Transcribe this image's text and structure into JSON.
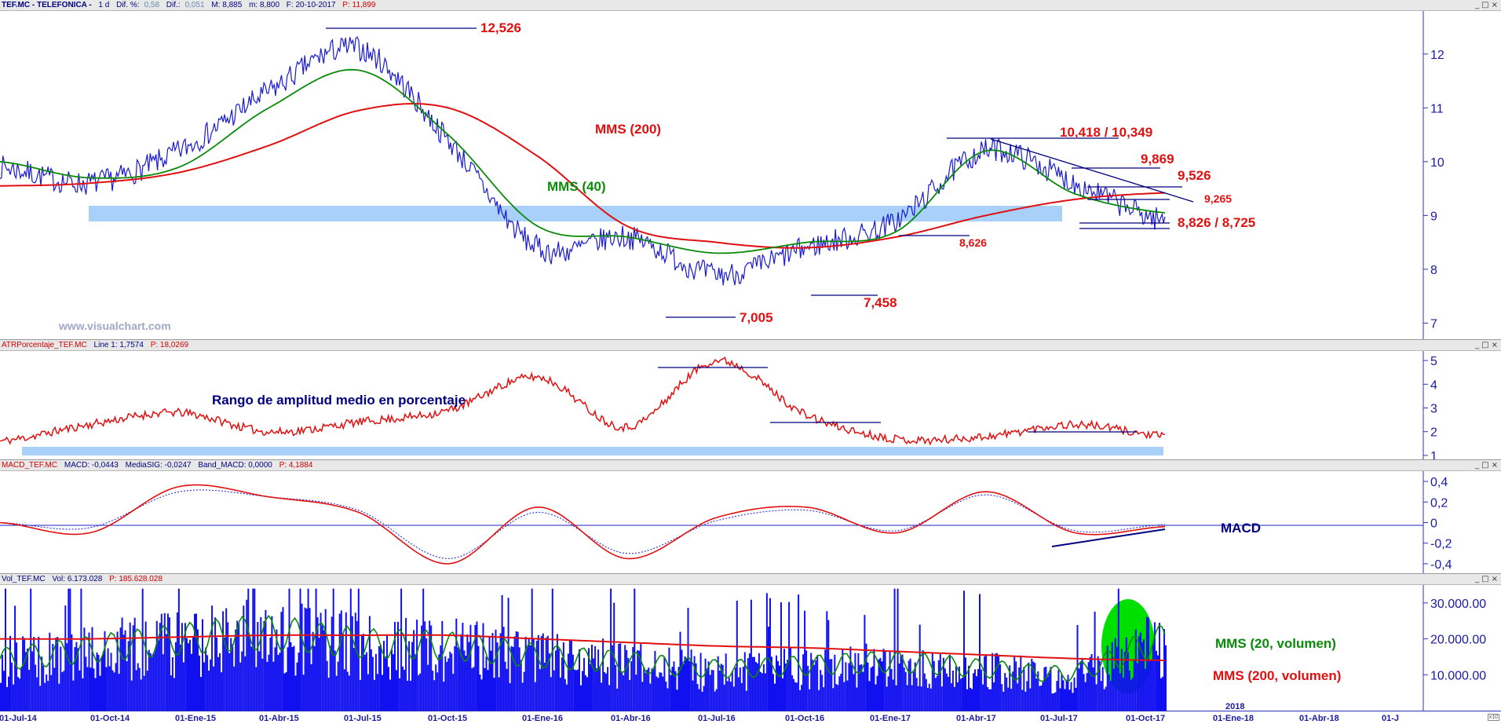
{
  "main": {
    "header": [
      "TEF.MC - TELEFONICA -",
      "1 d",
      "Dif. %:",
      "0,58",
      "Dif.:",
      "0,051",
      "M: 8,885",
      "m: 8,800",
      "F: 20-10-2017",
      "P: 11,899"
    ],
    "watermark": "www.visualchart.com",
    "ticks": [
      "12",
      "11",
      "10",
      "9",
      "8",
      "7"
    ],
    "annotations": {
      "high": "12,526",
      "low1": "7,005",
      "low2": "7,458",
      "mms200": "MMS (200)",
      "mms40": "MMS (40)",
      "r1": "10,418 / 10,349",
      "r2": "9,869",
      "r3": "9,526",
      "r4": "9,265",
      "s1": "8,826 / 8,725",
      "s2": "8,626"
    }
  },
  "atr": {
    "header": [
      "ATRPorcentaje_TEF.MC",
      "Line 1: 1,7574",
      "P: 18,0269"
    ],
    "title": "Rango de amplitud medio en porcentaje",
    "ticks": [
      "5",
      "4",
      "3",
      "2",
      "1"
    ]
  },
  "macd": {
    "header": [
      "MACD_TEF.MC",
      "MACD: -0,0443",
      "MediaSIG: -0,0247",
      "Band_MACD: 0,0000",
      "P: 4,1884"
    ],
    "title": "MACD",
    "ticks": [
      "0,4",
      "0,2",
      "0",
      "-0,2",
      "-0,4"
    ]
  },
  "vol": {
    "header": [
      "Vol_TEF.MC",
      "Vol: 6.173.028",
      "P: 185.628.028"
    ],
    "label20": "MMS (20, volumen)",
    "label200": "MMS (200, volumen)",
    "ticks": [
      "30.000.00",
      "20.000.00",
      "10.000.00"
    ],
    "year": "2018"
  },
  "xaxis": [
    "01-Jul-14",
    "01-Oct-14",
    "01-Ene-15",
    "01-Abr-15",
    "01-Jul-15",
    "01-Oct-15",
    "01-Ene-16",
    "01-Abr-16",
    "01-Jul-16",
    "01-Oct-16",
    "01-Ene-17",
    "01-Abr-17",
    "01-Jul-17",
    "01-Oct-17",
    "01-Ene-18",
    "01-Abr-18",
    "01-J"
  ],
  "winbuttons": [
    "_",
    "□",
    "×"
  ],
  "corner": "x10",
  "colors": {
    "price": "#1a1ad0",
    "mms200": "#e01010",
    "mms40": "#0a8a0a",
    "band": "#a8d0f8",
    "text_blue": "#1a1aa0",
    "annot_red": "#e01010",
    "annot_navy": "#000080",
    "vol_fill": "#1010f0",
    "highlight_green": "#00e000"
  },
  "chart_data": [
    {
      "type": "line",
      "title": "TEF.MC - TELEFONICA - 1 d",
      "x": [
        "01-Jul-14",
        "01-Oct-14",
        "01-Ene-15",
        "01-Abr-15",
        "01-Jul-15",
        "01-Oct-15",
        "01-Ene-16",
        "01-Abr-16",
        "01-Jul-16",
        "01-Oct-16",
        "01-Ene-17",
        "01-Abr-17",
        "01-Jul-17",
        "01-Oct-17"
      ],
      "series": [
        {
          "name": "",
          "values": [
            9.9,
            9.6,
            10.2,
            11.3,
            12.1,
            10.4,
            8.4,
            8.6,
            7.9,
            8.4,
            8.9,
            10.2,
            9.6,
            8.9
          ]
        },
        {
          "name": "MMS (40)",
          "values": [
            10.0,
            9.7,
            9.9,
            11.0,
            11.7,
            10.5,
            8.8,
            8.6,
            8.3,
            8.5,
            8.7,
            10.2,
            9.4,
            9.05
          ]
        },
        {
          "name": "MMS (200)",
          "values": [
            9.55,
            9.6,
            9.8,
            10.3,
            10.95,
            11.0,
            10.1,
            8.8,
            8.5,
            8.4,
            8.6,
            9.0,
            9.3,
            9.42
          ]
        }
      ],
      "ylim": [
        6.7,
        12.8
      ],
      "annotations": [
        "12,526",
        "7,005",
        "7,458",
        "10,418 / 10,349",
        "9,869",
        "9,526",
        "9,265",
        "8,826 / 8,725",
        "8,626"
      ]
    },
    {
      "type": "line",
      "title": "ATRPorcentaje_TEF.MC",
      "x": [
        "01-Jul-14",
        "01-Oct-14",
        "01-Ene-15",
        "01-Abr-15",
        "01-Jul-15",
        "01-Oct-15",
        "01-Ene-16",
        "01-Abr-16",
        "01-Jul-16",
        "01-Oct-16",
        "01-Ene-17",
        "01-Abr-17",
        "01-Jul-17",
        "01-Oct-17"
      ],
      "series": [
        {
          "name": "Line 1",
          "values": [
            1.6,
            2.3,
            2.8,
            2.0,
            2.4,
            2.9,
            4.3,
            2.2,
            5.0,
            2.7,
            1.7,
            1.8,
            2.3,
            1.8
          ]
        }
      ],
      "ylim": [
        0.8,
        5.4
      ]
    },
    {
      "type": "line",
      "title": "MACD_TEF.MC",
      "x": [
        "01-Jul-14",
        "01-Oct-14",
        "01-Ene-15",
        "01-Abr-15",
        "01-Jul-15",
        "01-Oct-15",
        "01-Ene-16",
        "01-Abr-16",
        "01-Jul-16",
        "01-Oct-16",
        "01-Ene-17",
        "01-Abr-17",
        "01-Jul-17",
        "01-Oct-17"
      ],
      "series": [
        {
          "name": "MACD",
          "values": [
            0.0,
            -0.1,
            0.35,
            0.25,
            0.1,
            -0.4,
            0.15,
            -0.35,
            0.05,
            0.15,
            -0.1,
            0.3,
            -0.1,
            -0.04
          ]
        },
        {
          "name": "MediaSIG",
          "values": [
            0.0,
            -0.05,
            0.3,
            0.25,
            0.12,
            -0.35,
            0.1,
            -0.3,
            0.02,
            0.12,
            -0.08,
            0.27,
            -0.08,
            -0.02
          ]
        }
      ],
      "ylim": [
        -0.5,
        0.5
      ]
    },
    {
      "type": "bar",
      "title": "Vol_TEF.MC",
      "x": [
        "01-Jul-14",
        "01-Oct-14",
        "01-Ene-15",
        "01-Abr-15",
        "01-Jul-15",
        "01-Oct-15",
        "01-Ene-16",
        "01-Abr-16",
        "01-Jul-16",
        "01-Oct-16",
        "01-Ene-17",
        "01-Abr-17",
        "01-Jul-17",
        "01-Oct-17"
      ],
      "series": [
        {
          "name": "MMS (20, volumen)",
          "values": [
            16000000,
            19000000,
            22000000,
            24000000,
            21000000,
            20000000,
            17000000,
            15000000,
            13000000,
            14000000,
            15000000,
            13000000,
            12000000,
            22000000
          ]
        },
        {
          "name": "MMS (200, volumen)",
          "values": [
            20000000,
            20000000,
            20500000,
            21000000,
            21000000,
            21000000,
            20000000,
            19000000,
            18000000,
            17500000,
            16500000,
            15500000,
            14500000,
            14000000
          ]
        }
      ],
      "ylim": [
        0,
        35000000
      ]
    }
  ]
}
